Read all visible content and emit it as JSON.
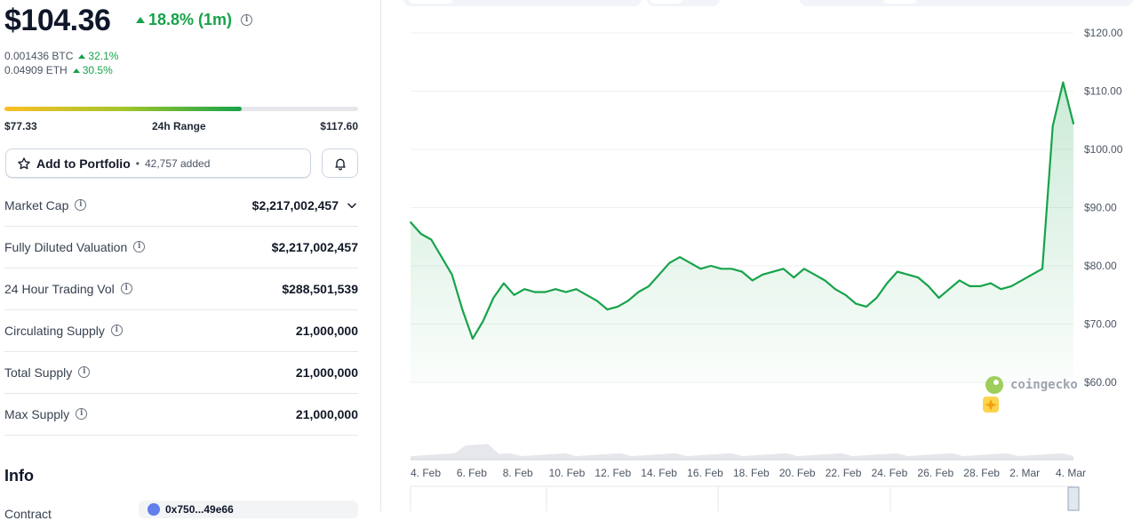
{
  "price": {
    "value": "$104.36",
    "change": "18.8% (1m)",
    "btc_value": "0.001436 BTC",
    "btc_change": "32.1%",
    "eth_value": "0.04909 ETH",
    "eth_change": "30.5%"
  },
  "range": {
    "low": "$77.33",
    "label": "24h Range",
    "high": "$117.60",
    "fill_fraction": 0.67
  },
  "portfolio": {
    "button_label": "Add to Portfolio",
    "separator": "•",
    "added_count": "42,757 added"
  },
  "stats": [
    {
      "label": "Market Cap",
      "value": "$2,217,002,457"
    },
    {
      "label": "Fully Diluted Valuation",
      "value": "$2,217,002,457"
    },
    {
      "label": "24 Hour Trading Vol",
      "value": "$288,501,539"
    },
    {
      "label": "Circulating Supply",
      "value": "21,000,000"
    },
    {
      "label": "Total Supply",
      "value": "21,000,000"
    },
    {
      "label": "Max Supply",
      "value": "21,000,000"
    }
  ],
  "info": {
    "heading": "Info",
    "contract_label": "Contract",
    "contract_value": "0x750...49e66"
  },
  "icons": {
    "info": "info-circle-icon",
    "star": "star-icon",
    "bell": "bell-icon",
    "chevron": "chevron-down-icon",
    "watermark": "coingecko-logo"
  },
  "colors": {
    "positive": "#16a34a",
    "line": "#16a34a"
  },
  "chart": {
    "watermark_text": "coingecko",
    "y_ticks": [
      "$120.00",
      "$110.00",
      "$100.00",
      "$90.00",
      "$80.00",
      "$70.00",
      "$60.00"
    ],
    "x_ticks": [
      "4. Feb",
      "6. Feb",
      "8. Feb",
      "10. Feb",
      "12. Feb",
      "14. Feb",
      "16. Feb",
      "18. Feb",
      "20. Feb",
      "22. Feb",
      "24. Feb",
      "26. Feb",
      "28. Feb",
      "2. Mar",
      "4. Mar"
    ]
  },
  "chart_data": {
    "type": "area",
    "ylim": [
      60,
      120
    ],
    "y_ticks": [
      60,
      70,
      80,
      90,
      100,
      110,
      120
    ],
    "x_tick_labels": [
      "4. Feb",
      "6. Feb",
      "8. Feb",
      "10. Feb",
      "12. Feb",
      "14. Feb",
      "16. Feb",
      "18. Feb",
      "20. Feb",
      "22. Feb",
      "24. Feb",
      "26. Feb",
      "28. Feb",
      "2. Mar",
      "4. Mar"
    ],
    "grid": true,
    "series": [
      {
        "points": [
          [
            "4. Feb",
            87.5
          ],
          [
            "4. Feb",
            85.5
          ],
          [
            "5. Feb",
            84.5
          ],
          [
            "5. Feb",
            81.5
          ],
          [
            "5. Feb",
            78.5
          ],
          [
            "6. Feb",
            72.5
          ],
          [
            "6. Feb",
            67.5
          ],
          [
            "6. Feb",
            70.5
          ],
          [
            "7. Feb",
            74.5
          ],
          [
            "7. Feb",
            77.0
          ],
          [
            "7. Feb",
            75.0
          ],
          [
            "8. Feb",
            76.0
          ],
          [
            "8. Feb",
            75.5
          ],
          [
            "9. Feb",
            75.5
          ],
          [
            "9. Feb",
            76.0
          ],
          [
            "10. Feb",
            75.5
          ],
          [
            "10. Feb",
            76.0
          ],
          [
            "11. Feb",
            75.0
          ],
          [
            "11. Feb",
            74.0
          ],
          [
            "12. Feb",
            72.5
          ],
          [
            "12. Feb",
            73.0
          ],
          [
            "13. Feb",
            74.0
          ],
          [
            "13. Feb",
            75.5
          ],
          [
            "14. Feb",
            76.5
          ],
          [
            "14. Feb",
            78.5
          ],
          [
            "15. Feb",
            80.5
          ],
          [
            "15. Feb",
            81.5
          ],
          [
            "16. Feb",
            80.5
          ],
          [
            "16. Feb",
            79.5
          ],
          [
            "17. Feb",
            80.0
          ],
          [
            "17. Feb",
            79.5
          ],
          [
            "18. Feb",
            79.5
          ],
          [
            "18. Feb",
            79.0
          ],
          [
            "19. Feb",
            77.5
          ],
          [
            "19. Feb",
            78.5
          ],
          [
            "20. Feb",
            79.0
          ],
          [
            "20. Feb",
            79.5
          ],
          [
            "21. Feb",
            78.0
          ],
          [
            "21. Feb",
            79.5
          ],
          [
            "22. Feb",
            78.5
          ],
          [
            "22. Feb",
            77.5
          ],
          [
            "23. Feb",
            76.0
          ],
          [
            "23. Feb",
            75.0
          ],
          [
            "24. Feb",
            73.5
          ],
          [
            "24. Feb",
            73.0
          ],
          [
            "25. Feb",
            74.5
          ],
          [
            "25. Feb",
            77.0
          ],
          [
            "26. Feb",
            79.0
          ],
          [
            "26. Feb",
            78.5
          ],
          [
            "27. Feb",
            78.0
          ],
          [
            "27. Feb",
            76.5
          ],
          [
            "28. Feb",
            74.5
          ],
          [
            "28. Feb",
            76.0
          ],
          [
            "1. Mar",
            77.5
          ],
          [
            "1. Mar",
            76.5
          ],
          [
            "2. Mar",
            76.5
          ],
          [
            "2. Mar",
            77.0
          ],
          [
            "3. Mar",
            76.0
          ],
          [
            "3. Mar",
            76.5
          ],
          [
            "4. Mar",
            77.5
          ],
          [
            "4. Mar",
            78.5
          ],
          [
            "5. Mar",
            79.5
          ],
          [
            "5. Mar",
            104.0
          ],
          [
            "5. Mar",
            111.5
          ],
          [
            "5. Mar",
            104.4
          ]
        ]
      }
    ]
  }
}
